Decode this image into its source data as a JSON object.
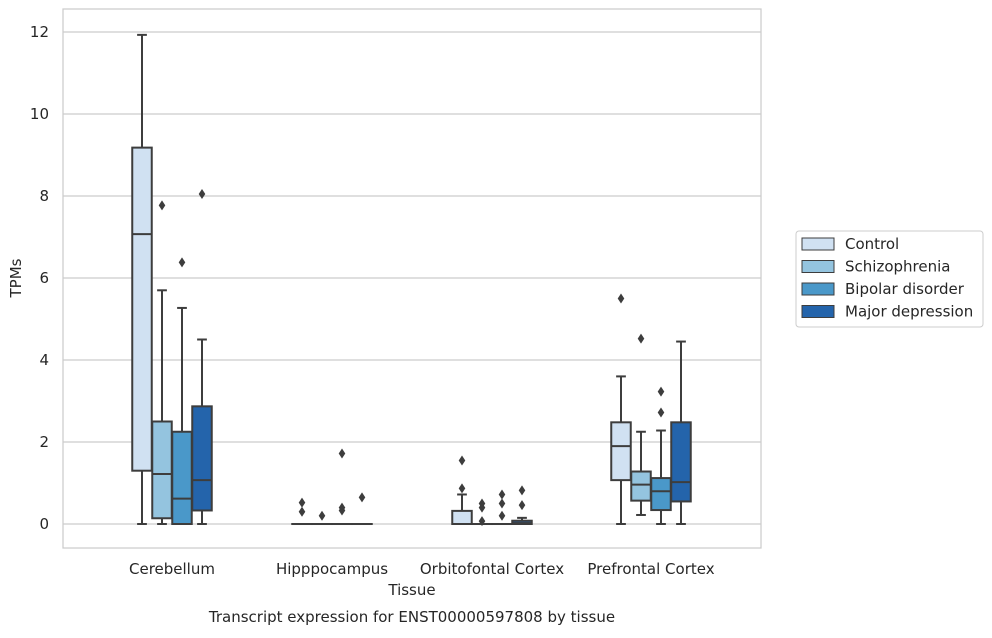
{
  "chart_data": {
    "type": "boxplot",
    "title": "Transcript expression for ENST00000597808 by tissue",
    "xlabel": "Tissue",
    "ylabel": "TPMs",
    "ylim": [
      -0.6,
      12.55
    ],
    "yticks": [
      0,
      2,
      4,
      6,
      8,
      10,
      12
    ],
    "grid": "horizontal",
    "legend_position": "right",
    "categories": [
      "Cerebellum",
      "Hipppocampus",
      "Orbitofontal Cortex",
      "Prefrontal Cortex"
    ],
    "series": [
      {
        "name": "Control",
        "color": "#d0e1f2",
        "boxes": [
          {
            "whislo": 0,
            "q1": 1.3,
            "med": 7.07,
            "q3": 9.18,
            "whishi": 11.93,
            "fliers": []
          },
          {
            "whislo": 0,
            "q1": 0,
            "med": 0,
            "q3": 0,
            "whishi": 0,
            "fliers": [
              0.3,
              0.52
            ]
          },
          {
            "whislo": 0,
            "q1": 0,
            "med": 0,
            "q3": 0.32,
            "whishi": 0.72,
            "fliers": [
              0.87,
              1.55
            ]
          },
          {
            "whislo": 0,
            "q1": 1.07,
            "med": 1.9,
            "q3": 2.48,
            "whishi": 3.6,
            "fliers": [
              5.5
            ]
          }
        ]
      },
      {
        "name": "Schizophrenia",
        "color": "#94c4df",
        "boxes": [
          {
            "whislo": 0,
            "q1": 0.14,
            "med": 1.22,
            "q3": 2.5,
            "whishi": 5.7,
            "fliers": [
              7.77
            ]
          },
          {
            "whislo": 0,
            "q1": 0,
            "med": 0,
            "q3": 0,
            "whishi": 0,
            "fliers": [
              0.2
            ]
          },
          {
            "whislo": 0,
            "q1": 0,
            "med": 0,
            "q3": 0,
            "whishi": 0,
            "fliers": [
              0.07,
              0.4,
              0.5
            ]
          },
          {
            "whislo": 0.22,
            "q1": 0.57,
            "med": 0.96,
            "q3": 1.28,
            "whishi": 2.25,
            "fliers": [
              4.52
            ]
          }
        ]
      },
      {
        "name": "Bipolar disorder",
        "color": "#4a98c9",
        "boxes": [
          {
            "whislo": 0,
            "q1": 0,
            "med": 0.62,
            "q3": 2.25,
            "whishi": 5.27,
            "fliers": [
              6.38
            ]
          },
          {
            "whislo": 0,
            "q1": 0,
            "med": 0,
            "q3": 0,
            "whishi": 0,
            "fliers": [
              0.33,
              0.4,
              1.72
            ]
          },
          {
            "whislo": 0,
            "q1": 0,
            "med": 0,
            "q3": 0,
            "whishi": 0,
            "fliers": [
              0.2,
              0.5,
              0.72
            ]
          },
          {
            "whislo": 0,
            "q1": 0.34,
            "med": 0.8,
            "q3": 1.12,
            "whishi": 2.28,
            "fliers": [
              2.72,
              3.23
            ]
          }
        ]
      },
      {
        "name": "Major depression",
        "color": "#2464ab",
        "boxes": [
          {
            "whislo": 0,
            "q1": 0.33,
            "med": 1.07,
            "q3": 2.87,
            "whishi": 4.5,
            "fliers": [
              8.05
            ]
          },
          {
            "whislo": 0,
            "q1": 0,
            "med": 0,
            "q3": 0,
            "whishi": 0,
            "fliers": [
              0.65
            ]
          },
          {
            "whislo": 0,
            "q1": 0,
            "med": 0.02,
            "q3": 0.08,
            "whishi": 0.15,
            "fliers": [
              0.46,
              0.82
            ]
          },
          {
            "whislo": 0,
            "q1": 0.55,
            "med": 1.02,
            "q3": 2.48,
            "whishi": 4.45,
            "fliers": []
          }
        ]
      }
    ]
  }
}
